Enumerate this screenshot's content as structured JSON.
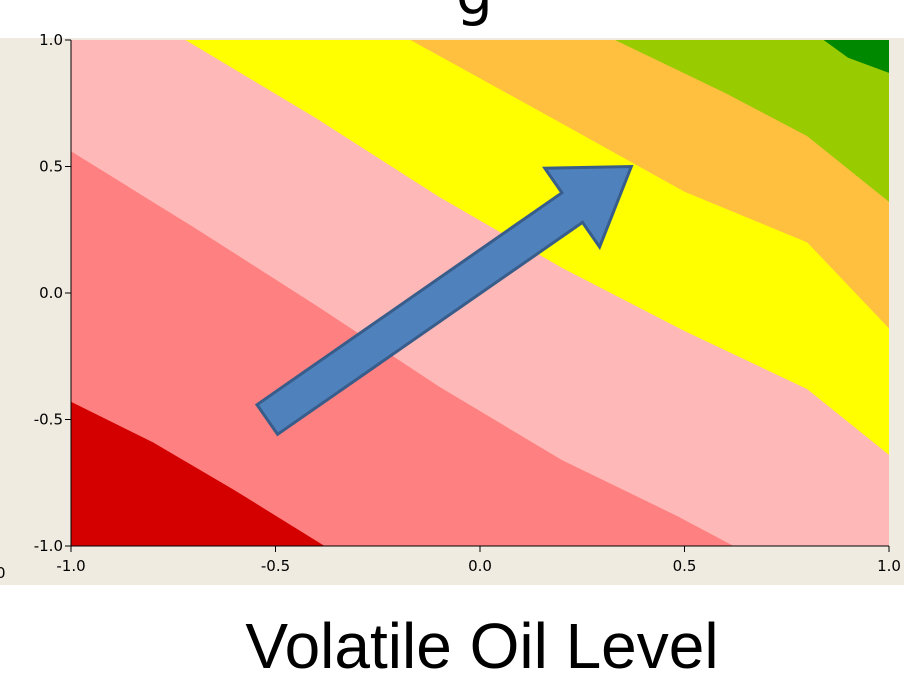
{
  "chart_data": {
    "type": "contour",
    "title_fragment": "g",
    "xlabel": "Volatile Oil Level",
    "ylabel": "",
    "xlim": [
      -1.0,
      1.0
    ],
    "ylim": [
      -1.0,
      1.0
    ],
    "x_ticks": [
      "-1.0",
      "-0.5",
      "0.0",
      "0.5",
      "1.0"
    ],
    "y_ticks": [
      "1.0",
      "0.5",
      "0.0",
      "-0.5",
      "-1.0"
    ],
    "clipped_left_tick": "0",
    "grid": false,
    "legend": "none",
    "contour_bands": [
      {
        "color": "#D40000",
        "boundary": [
          [
            -1.0,
            -0.43
          ],
          [
            -0.8,
            -0.59
          ],
          [
            -0.6,
            -0.78
          ],
          [
            -0.38,
            -1.0
          ]
        ]
      },
      {
        "color": "#FF8080",
        "boundary": [
          [
            -1.0,
            0.56
          ],
          [
            -0.7,
            0.26
          ],
          [
            -0.4,
            -0.05
          ],
          [
            -0.1,
            -0.37
          ],
          [
            0.2,
            -0.66
          ],
          [
            0.48,
            -0.88
          ],
          [
            0.62,
            -1.0
          ]
        ]
      },
      {
        "color": "#FFB8B8",
        "boundary": [
          [
            -0.72,
            1.0
          ],
          [
            -0.4,
            0.69
          ],
          [
            -0.1,
            0.38
          ],
          [
            0.2,
            0.1
          ],
          [
            0.5,
            -0.15
          ],
          [
            0.8,
            -0.38
          ],
          [
            1.0,
            -0.64
          ]
        ]
      },
      {
        "color": "#FFFF00",
        "boundary": [
          [
            -0.17,
            1.0
          ],
          [
            0.2,
            0.67
          ],
          [
            0.5,
            0.4
          ],
          [
            0.8,
            0.2
          ],
          [
            1.0,
            -0.14
          ]
        ]
      },
      {
        "color": "#FFC040",
        "boundary": [
          [
            0.33,
            1.0
          ],
          [
            0.6,
            0.79
          ],
          [
            0.8,
            0.62
          ],
          [
            1.0,
            0.36
          ]
        ]
      },
      {
        "color": "#99CC00",
        "boundary": [
          [
            0.84,
            1.0
          ],
          [
            0.9,
            0.93
          ],
          [
            1.0,
            0.87
          ]
        ]
      },
      {
        "color": "#008800",
        "boundary": []
      }
    ],
    "arrow": {
      "from": [
        -0.52,
        -0.5
      ],
      "to": [
        0.37,
        0.5
      ],
      "color": "#4F81BD"
    }
  }
}
